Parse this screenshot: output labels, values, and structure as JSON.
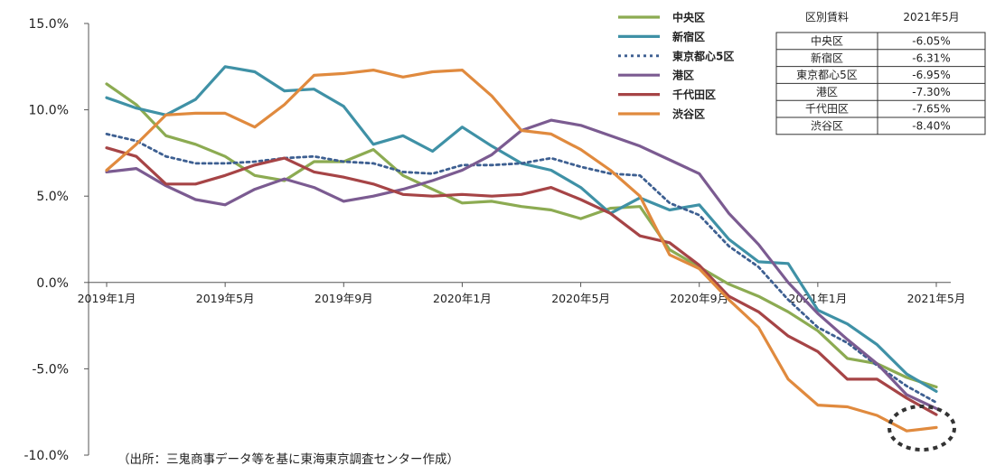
{
  "chart_data": {
    "type": "line",
    "title": "",
    "xlabel": "",
    "ylabel": "",
    "ylim": [
      -10.0,
      15.0
    ],
    "yticks": [
      "15.0%",
      "10.0%",
      "5.0%",
      "0.0%",
      "-5.0%",
      "-10.0%"
    ],
    "ytick_values": [
      15,
      10,
      5,
      0,
      -5,
      -10
    ],
    "x": [
      "2019-01",
      "2019-02",
      "2019-03",
      "2019-04",
      "2019-05",
      "2019-06",
      "2019-07",
      "2019-08",
      "2019-09",
      "2019-10",
      "2019-11",
      "2019-12",
      "2020-01",
      "2020-02",
      "2020-03",
      "2020-04",
      "2020-05",
      "2020-06",
      "2020-07",
      "2020-08",
      "2020-09",
      "2020-10",
      "2020-11",
      "2020-12",
      "2021-01",
      "2021-02",
      "2021-03",
      "2021-04",
      "2021-05"
    ],
    "xticks": [
      {
        "label": "2019年1月",
        "x": "2019-01"
      },
      {
        "label": "2019年5月",
        "x": "2019-05"
      },
      {
        "label": "2019年9月",
        "x": "2019-09"
      },
      {
        "label": "2020年1月",
        "x": "2020-01"
      },
      {
        "label": "2020年5月",
        "x": "2020-05"
      },
      {
        "label": "2020年9月",
        "x": "2020-09"
      },
      {
        "label": "2021年1月",
        "x": "2021-01"
      },
      {
        "label": "2021年5月",
        "x": "2021-05"
      }
    ],
    "series": [
      {
        "name": "中央区",
        "color": "#8cab52",
        "dash": false,
        "values": [
          11.5,
          10.3,
          8.5,
          8.0,
          7.3,
          6.2,
          5.9,
          7.0,
          7.0,
          7.7,
          6.2,
          5.4,
          4.6,
          4.7,
          4.4,
          4.2,
          3.7,
          4.3,
          4.4,
          1.9,
          0.9,
          -0.1,
          -0.8,
          -1.7,
          -2.8,
          -4.4,
          -4.7,
          -5.5,
          -6.05
        ]
      },
      {
        "name": "新宿区",
        "color": "#3f91a6",
        "dash": false,
        "values": [
          10.7,
          10.1,
          9.7,
          10.6,
          12.5,
          12.2,
          11.1,
          11.2,
          10.2,
          8.0,
          8.5,
          7.6,
          9.0,
          7.9,
          6.9,
          6.5,
          5.5,
          4.0,
          4.9,
          4.2,
          4.5,
          2.5,
          1.2,
          1.1,
          -1.6,
          -2.4,
          -3.6,
          -5.3,
          -6.31
        ]
      },
      {
        "name": "東京都心5区",
        "color": "#3d5f91",
        "dash": true,
        "values": [
          8.6,
          8.2,
          7.3,
          6.9,
          6.9,
          7.0,
          7.2,
          7.3,
          7.0,
          6.9,
          6.4,
          6.3,
          6.8,
          6.8,
          6.9,
          7.2,
          6.7,
          6.3,
          6.2,
          4.6,
          3.9,
          2.1,
          0.9,
          -1.0,
          -2.6,
          -3.5,
          -4.8,
          -6.0,
          -6.95
        ]
      },
      {
        "name": "港区",
        "color": "#7b5b91",
        "dash": false,
        "values": [
          6.4,
          6.6,
          5.6,
          4.8,
          4.5,
          5.4,
          6.0,
          5.5,
          4.7,
          5.0,
          5.4,
          5.9,
          6.5,
          7.4,
          8.8,
          9.4,
          9.1,
          8.5,
          7.9,
          7.1,
          6.3,
          4.0,
          2.2,
          0.0,
          -1.8,
          -3.3,
          -4.7,
          -6.5,
          -7.3
        ]
      },
      {
        "name": "千代田区",
        "color": "#a64446",
        "dash": false,
        "values": [
          7.8,
          7.3,
          5.7,
          5.7,
          6.2,
          6.8,
          7.2,
          6.4,
          6.1,
          5.7,
          5.1,
          5.0,
          5.1,
          5.0,
          5.1,
          5.5,
          4.8,
          4.0,
          2.7,
          2.3,
          1.0,
          -0.8,
          -1.7,
          -3.1,
          -4.0,
          -5.6,
          -5.6,
          -6.7,
          -7.65
        ]
      },
      {
        "name": "渋谷区",
        "color": "#e08a3e",
        "dash": false,
        "values": [
          6.5,
          8.0,
          9.7,
          9.8,
          9.8,
          9.0,
          10.3,
          12.0,
          12.1,
          12.3,
          11.9,
          12.2,
          12.3,
          10.8,
          8.8,
          8.6,
          7.7,
          6.5,
          5.0,
          1.6,
          0.8,
          -1.0,
          -2.6,
          -5.6,
          -7.1,
          -7.2,
          -7.7,
          -8.6,
          -8.4
        ]
      }
    ],
    "legend_position": "top-right",
    "grid": false
  },
  "table": {
    "header": [
      "区別賃料",
      "2021年5月"
    ],
    "rows": [
      [
        "中央区",
        "-6.05%"
      ],
      [
        "新宿区",
        "-6.31%"
      ],
      [
        "東京都心5区",
        "-6.95%"
      ],
      [
        "港区",
        "-7.30%"
      ],
      [
        "千代田区",
        "-7.65%"
      ],
      [
        "渋谷区",
        "-8.40%"
      ]
    ]
  },
  "source_note": "（出所：三鬼商事データ等を基に東海東京調査センター作成）"
}
